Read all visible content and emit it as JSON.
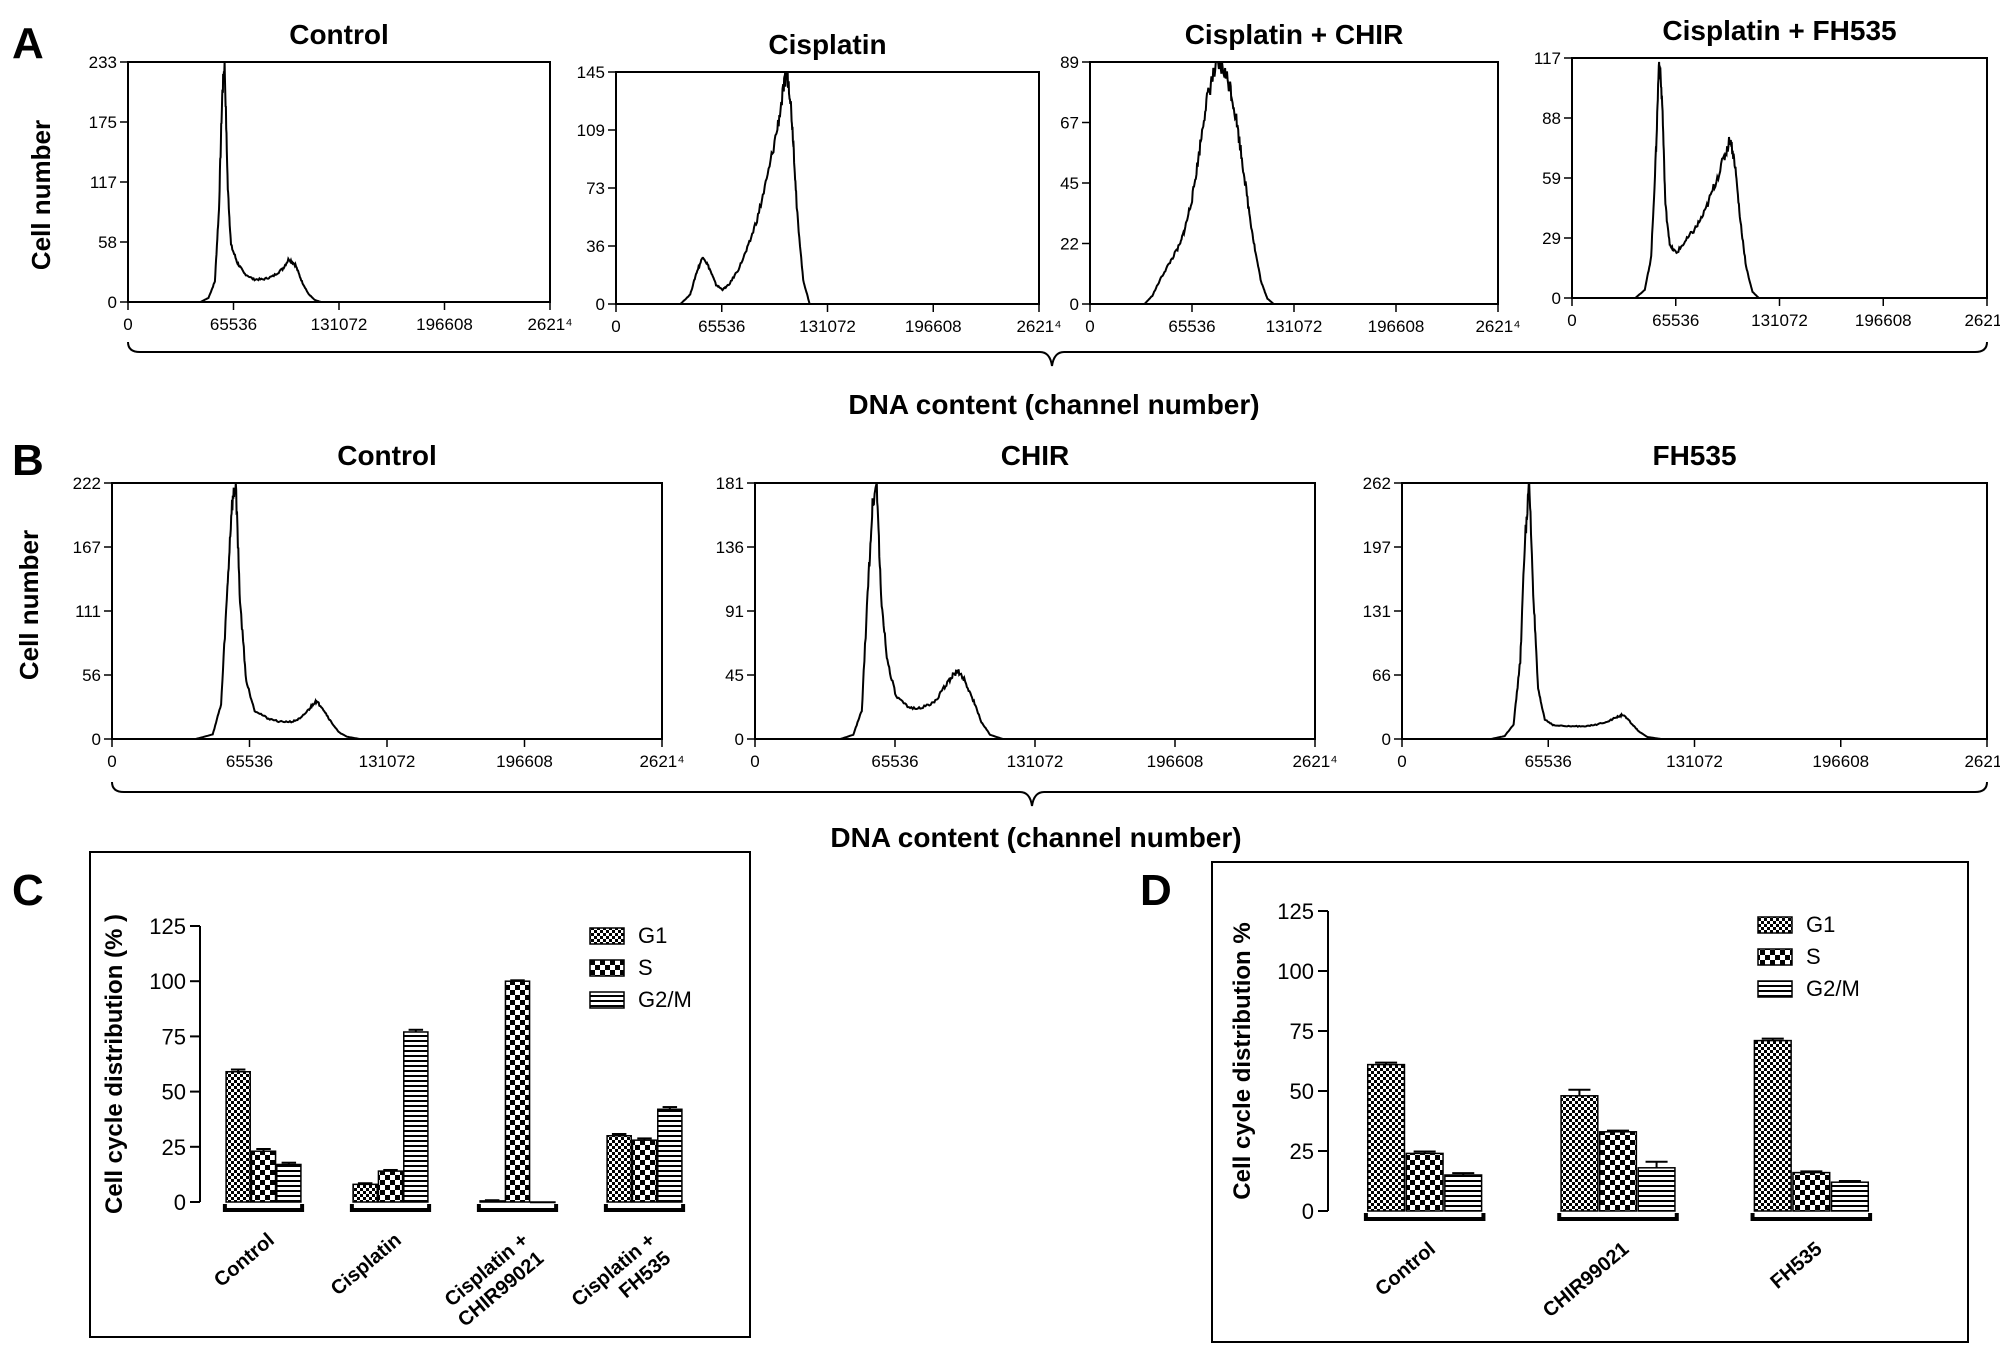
{
  "panels": {
    "A": {
      "letter": "A",
      "ylabel": "Cell number",
      "xlabel": "DNA content (channel number)",
      "histograms": [
        {
          "title": "Control",
          "yticks": [
            "0",
            "58",
            "117",
            "175",
            "233"
          ]
        },
        {
          "title": "Cisplatin",
          "yticks": [
            "0",
            "36",
            "73",
            "109",
            "145"
          ]
        },
        {
          "title": "Cisplatin + CHIR",
          "yticks": [
            "0",
            "22",
            "45",
            "67",
            "89"
          ]
        },
        {
          "title": "Cisplatin + FH535",
          "yticks": [
            "0",
            "29",
            "59",
            "88",
            "117"
          ]
        }
      ]
    },
    "B": {
      "letter": "B",
      "ylabel": "Cell number",
      "xlabel": "DNA content (channel number)",
      "histograms": [
        {
          "title": "Control",
          "yticks": [
            "0",
            "56",
            "111",
            "167",
            "222"
          ]
        },
        {
          "title": "CHIR",
          "yticks": [
            "0",
            "45",
            "91",
            "136",
            "181"
          ]
        },
        {
          "title": "FH535",
          "yticks": [
            "0",
            "66",
            "131",
            "197",
            "262"
          ]
        }
      ]
    },
    "C": {
      "letter": "C"
    },
    "D": {
      "letter": "D"
    },
    "x_ticks": [
      "0",
      "65536",
      "131072",
      "196608",
      "2621⁴"
    ]
  },
  "chart_data": [
    {
      "panel": "A",
      "type": "area",
      "title": "Control",
      "xlabel": "DNA content (channel number)",
      "ylabel": "Cell number",
      "xlim": [
        0,
        262144
      ],
      "ylim": [
        0,
        233
      ],
      "x": [
        45000,
        50000,
        54000,
        56500,
        58500,
        60000,
        62000,
        64000,
        68000,
        72000,
        78000,
        84000,
        90000,
        96000,
        100000,
        104000,
        108000,
        112000,
        116000,
        120000
      ],
      "y": [
        0,
        4,
        20,
        90,
        200,
        233,
        110,
        55,
        38,
        28,
        22,
        22,
        25,
        32,
        42,
        36,
        20,
        8,
        2,
        0
      ]
    },
    {
      "panel": "A",
      "type": "area",
      "title": "Cisplatin",
      "xlabel": "DNA content (channel number)",
      "ylabel": "Cell number",
      "xlim": [
        0,
        262144
      ],
      "ylim": [
        0,
        145
      ],
      "x": [
        40000,
        46000,
        50000,
        54000,
        58000,
        62000,
        66000,
        70000,
        76000,
        82000,
        88000,
        94000,
        100000,
        104000,
        106000,
        108000,
        110000,
        112000,
        116000,
        120000
      ],
      "y": [
        0,
        6,
        20,
        30,
        22,
        12,
        9,
        12,
        22,
        36,
        55,
        80,
        110,
        135,
        145,
        130,
        100,
        60,
        15,
        0
      ]
    },
    {
      "panel": "A",
      "type": "area",
      "title": "Cisplatin + CHIR",
      "xlabel": "DNA content (channel number)",
      "ylabel": "Cell number",
      "xlim": [
        0,
        262144
      ],
      "ylim": [
        0,
        89
      ],
      "x": [
        35000,
        40000,
        46000,
        52000,
        58000,
        62000,
        66000,
        70000,
        74000,
        78000,
        82000,
        86000,
        90000,
        94000,
        98000,
        102000,
        106000,
        110000,
        114000,
        118000
      ],
      "y": [
        0,
        3,
        10,
        16,
        22,
        30,
        40,
        55,
        72,
        82,
        88,
        86,
        80,
        68,
        52,
        35,
        20,
        8,
        2,
        0
      ]
    },
    {
      "panel": "A",
      "type": "area",
      "title": "Cisplatin + FH535",
      "xlabel": "DNA content (channel number)",
      "ylabel": "Cell number",
      "xlim": [
        0,
        262144
      ],
      "ylim": [
        0,
        117
      ],
      "x": [
        40000,
        46000,
        50000,
        53000,
        55000,
        57000,
        59000,
        62000,
        66000,
        72000,
        78000,
        84000,
        90000,
        96000,
        100000,
        103000,
        106000,
        110000,
        114000,
        118000
      ],
      "y": [
        0,
        4,
        20,
        70,
        117,
        95,
        45,
        25,
        22,
        28,
        34,
        42,
        55,
        68,
        78,
        65,
        40,
        15,
        3,
        0
      ]
    },
    {
      "panel": "B",
      "type": "area",
      "title": "Control",
      "xlabel": "DNA content (channel number)",
      "ylabel": "Cell number",
      "xlim": [
        0,
        262144
      ],
      "ylim": [
        0,
        222
      ],
      "x": [
        40000,
        48000,
        52000,
        55000,
        57000,
        59000,
        61000,
        64000,
        68000,
        74000,
        80000,
        86000,
        90000,
        94000,
        97000,
        100000,
        104000,
        108000,
        112000,
        118000
      ],
      "y": [
        0,
        4,
        30,
        130,
        200,
        222,
        120,
        50,
        25,
        18,
        15,
        15,
        18,
        26,
        33,
        28,
        16,
        6,
        2,
        0
      ]
    },
    {
      "panel": "B",
      "type": "area",
      "title": "CHIR",
      "xlabel": "DNA content (channel number)",
      "ylabel": "Cell number",
      "xlim": [
        0,
        262144
      ],
      "ylim": [
        0,
        181
      ],
      "x": [
        40000,
        46000,
        50000,
        53000,
        55000,
        57000,
        59000,
        62000,
        66000,
        72000,
        78000,
        84000,
        88000,
        92000,
        95000,
        98000,
        102000,
        106000,
        110000,
        116000
      ],
      "y": [
        0,
        3,
        20,
        110,
        165,
        181,
        100,
        55,
        30,
        22,
        22,
        26,
        35,
        44,
        48,
        42,
        28,
        12,
        3,
        0
      ]
    },
    {
      "panel": "B",
      "type": "area",
      "title": "FH535",
      "xlabel": "DNA content (channel number)",
      "ylabel": "Cell number",
      "xlim": [
        0,
        262144
      ],
      "ylim": [
        0,
        262
      ],
      "x": [
        40000,
        46000,
        50000,
        53000,
        55000,
        57000,
        59000,
        61000,
        64000,
        68000,
        74000,
        80000,
        86000,
        92000,
        96000,
        99000,
        102000,
        106000,
        110000,
        116000
      ],
      "y": [
        0,
        3,
        15,
        80,
        200,
        262,
        140,
        50,
        20,
        14,
        13,
        13,
        14,
        18,
        22,
        25,
        18,
        8,
        2,
        0
      ]
    },
    {
      "panel": "C",
      "type": "bar",
      "title": "",
      "xlabel": "",
      "ylabel": "Cell cycle distribution (% )",
      "ylim": [
        0,
        125
      ],
      "yticks": [
        "0",
        "25",
        "50",
        "75",
        "100",
        "125"
      ],
      "categories": [
        "Control",
        "Cisplatin",
        "Cisplatin +\nCHIR99021",
        "Cisplatin +\nFH535"
      ],
      "series": [
        {
          "name": "G1",
          "values": [
            59,
            8,
            0.5,
            30
          ],
          "errors": [
            1,
            0.5,
            0.3,
            0.8
          ]
        },
        {
          "name": "S",
          "values": [
            23,
            14,
            100,
            28
          ],
          "errors": [
            1,
            0.5,
            0.4,
            0.8
          ]
        },
        {
          "name": "G2/M",
          "values": [
            17,
            77,
            0,
            42
          ],
          "errors": [
            0.8,
            1,
            0,
            1
          ]
        }
      ],
      "legend": "top-right"
    },
    {
      "panel": "D",
      "type": "bar",
      "title": "",
      "xlabel": "",
      "ylabel": "Cell cycle distribution %",
      "ylim": [
        0,
        125
      ],
      "yticks": [
        "0",
        "25",
        "50",
        "75",
        "100",
        "125"
      ],
      "categories": [
        "Control",
        "CHIR99021",
        "FH535"
      ],
      "series": [
        {
          "name": "G1",
          "values": [
            61,
            48,
            71
          ],
          "errors": [
            0.8,
            2.5,
            0.8
          ]
        },
        {
          "name": "S",
          "values": [
            24,
            33,
            16
          ],
          "errors": [
            0.8,
            0.5,
            0.5
          ]
        },
        {
          "name": "G2/M",
          "values": [
            15,
            18,
            12
          ],
          "errors": [
            0.8,
            2.5,
            0.5
          ]
        }
      ],
      "legend": "top-right"
    }
  ]
}
